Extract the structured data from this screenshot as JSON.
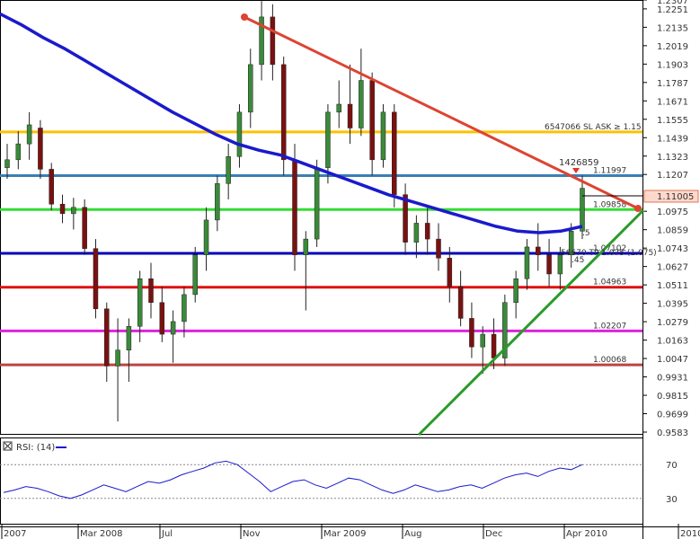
{
  "chart_data": {
    "type": "candlestick",
    "price_axis": {
      "ticks": [
        "1.2307",
        "1.2251",
        "1.2135",
        "1.2019",
        "1.1903",
        "1.1787",
        "1.1671",
        "1.1555",
        "1.1439",
        "1.1323",
        "1.1207",
        "1.0975",
        "1.0859",
        "1.0743",
        "1.0627",
        "1.0511",
        "1.0395",
        "1.0279",
        "1.0163",
        "1.0047",
        "0.9931",
        "0.9815",
        "0.9699",
        "0.9583"
      ],
      "ylim": [
        0.9583,
        1.2307
      ]
    },
    "x_axis": {
      "ticks": [
        "2007",
        "Mar 2008",
        "Jul",
        "Nov",
        "Mar 2009",
        "Aug",
        "Dec",
        "Apr 2010",
        "2010"
      ]
    },
    "current_price": "1.11005",
    "horizontal_levels": [
      {
        "label": "1.11997",
        "value": 1.11997,
        "color": "#3a7fb5"
      },
      {
        "label": "1.09858",
        "value": 1.09858,
        "color": "#33dd33"
      },
      {
        "label": "1.07102",
        "value": 1.07102,
        "color": "#0000bb"
      },
      {
        "label": "1.04963",
        "value": 1.04963,
        "color": "#dd1111"
      },
      {
        "label": "1.02207",
        "value": 1.02207,
        "color": "#dd22dd"
      },
      {
        "label": "1.00068",
        "value": 1.00068,
        "color": "#bb4444"
      },
      {
        "label": "6547066 SL ASK ≥ 1.15",
        "value": 1.1475,
        "color": "#ffc000"
      }
    ],
    "annotations": {
      "top_marker": "1426859",
      "mid_label": "56670 TP 1.075 (1.075)",
      "small_a": ".5",
      "small_b": ".45"
    },
    "moving_average": {
      "color": "#1a1acc",
      "y": [
        1.222,
        1.215,
        1.207,
        1.2,
        1.192,
        1.184,
        1.176,
        1.168,
        1.16,
        1.153,
        1.146,
        1.14,
        1.136,
        1.133,
        1.128,
        1.123,
        1.118,
        1.113,
        1.108,
        1.104,
        1.1,
        1.096,
        1.092,
        1.088,
        1.085,
        1.084,
        1.085,
        1.088
      ]
    },
    "candles": [
      [
        1.125,
        1.14,
        1.118,
        1.13
      ],
      [
        1.13,
        1.148,
        1.124,
        1.14
      ],
      [
        1.14,
        1.16,
        1.13,
        1.152
      ],
      [
        1.15,
        1.155,
        1.118,
        1.124
      ],
      [
        1.124,
        1.128,
        1.098,
        1.102
      ],
      [
        1.102,
        1.108,
        1.09,
        1.096
      ],
      [
        1.096,
        1.106,
        1.086,
        1.1
      ],
      [
        1.1,
        1.105,
        1.07,
        1.074
      ],
      [
        1.074,
        1.08,
        1.03,
        1.036
      ],
      [
        1.036,
        1.04,
        0.99,
        1.0
      ],
      [
        1.0,
        1.03,
        0.965,
        1.01
      ],
      [
        1.01,
        1.03,
        0.99,
        1.025
      ],
      [
        1.025,
        1.06,
        1.015,
        1.055
      ],
      [
        1.055,
        1.065,
        1.03,
        1.04
      ],
      [
        1.04,
        1.05,
        1.015,
        1.02
      ],
      [
        1.02,
        1.035,
        1.002,
        1.028
      ],
      [
        1.028,
        1.05,
        1.018,
        1.045
      ],
      [
        1.045,
        1.075,
        1.04,
        1.07
      ],
      [
        1.07,
        1.1,
        1.06,
        1.092
      ],
      [
        1.092,
        1.12,
        1.085,
        1.115
      ],
      [
        1.115,
        1.14,
        1.105,
        1.132
      ],
      [
        1.132,
        1.165,
        1.125,
        1.16
      ],
      [
        1.16,
        1.2,
        1.15,
        1.19
      ],
      [
        1.19,
        1.23,
        1.18,
        1.22
      ],
      [
        1.22,
        1.228,
        1.18,
        1.19
      ],
      [
        1.19,
        1.195,
        1.12,
        1.13
      ],
      [
        1.13,
        1.14,
        1.06,
        1.07
      ],
      [
        1.07,
        1.085,
        1.035,
        1.08
      ],
      [
        1.08,
        1.13,
        1.075,
        1.125
      ],
      [
        1.125,
        1.165,
        1.115,
        1.16
      ],
      [
        1.16,
        1.18,
        1.15,
        1.165
      ],
      [
        1.165,
        1.19,
        1.14,
        1.15
      ],
      [
        1.15,
        1.2,
        1.145,
        1.18
      ],
      [
        1.18,
        1.185,
        1.12,
        1.13
      ],
      [
        1.13,
        1.165,
        1.125,
        1.16
      ],
      [
        1.16,
        1.165,
        1.1,
        1.108
      ],
      [
        1.108,
        1.115,
        1.07,
        1.078
      ],
      [
        1.078,
        1.095,
        1.068,
        1.09
      ],
      [
        1.09,
        1.1,
        1.07,
        1.08
      ],
      [
        1.08,
        1.09,
        1.06,
        1.068
      ],
      [
        1.068,
        1.075,
        1.04,
        1.05
      ],
      [
        1.05,
        1.06,
        1.025,
        1.03
      ],
      [
        1.03,
        1.04,
        1.005,
        1.012
      ],
      [
        1.012,
        1.025,
        0.995,
        1.02
      ],
      [
        1.02,
        1.03,
        0.998,
        1.005
      ],
      [
        1.005,
        1.045,
        1.0,
        1.04
      ],
      [
        1.04,
        1.06,
        1.03,
        1.055
      ],
      [
        1.055,
        1.08,
        1.048,
        1.075
      ],
      [
        1.075,
        1.09,
        1.06,
        1.07
      ],
      [
        1.07,
        1.08,
        1.05,
        1.058
      ],
      [
        1.058,
        1.075,
        1.048,
        1.07
      ],
      [
        1.07,
        1.09,
        1.062,
        1.085
      ],
      [
        1.085,
        1.12,
        1.08,
        1.112
      ]
    ]
  },
  "rsi": {
    "label": "RSI: (14)",
    "levels": [
      "70",
      "30"
    ],
    "values": [
      37,
      40,
      44,
      42,
      38,
      33,
      30,
      34,
      40,
      46,
      42,
      38,
      44,
      50,
      48,
      52,
      58,
      62,
      66,
      72,
      74,
      70,
      60,
      50,
      38,
      44,
      50,
      52,
      46,
      42,
      48,
      54,
      52,
      46,
      40,
      36,
      40,
      46,
      42,
      38,
      40,
      44,
      46,
      42,
      48,
      54,
      58,
      60,
      56,
      62,
      66,
      64,
      70
    ]
  }
}
